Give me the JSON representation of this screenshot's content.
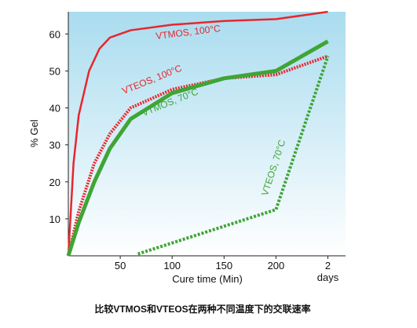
{
  "chart_data": {
    "type": "line",
    "caption": "比较VTMOS和VTEOS在两种不同温度下的交联速率",
    "ylabel": "% Gel",
    "xlabel": "Cure time (Min)",
    "xlim": [
      0,
      267
    ],
    "ylim": [
      0,
      66
    ],
    "xticks": [
      50,
      100,
      150,
      200,
      {
        "value": 250,
        "label": "2 days"
      }
    ],
    "yticks": [
      10,
      20,
      30,
      40,
      50,
      60
    ],
    "series": [
      {
        "name": "VTMOS, 100°C",
        "color": "#e8262c",
        "style": "solid",
        "x": [
          0,
          5,
          10,
          20,
          30,
          40,
          60,
          100,
          150,
          200,
          250
        ],
        "values": [
          0,
          25,
          38,
          50,
          56,
          59,
          61,
          62.5,
          63.5,
          64,
          66
        ]
      },
      {
        "name": "VTEOS, 100°C",
        "color": "#e8262c",
        "style": "dotted",
        "x": [
          0,
          10,
          25,
          40,
          60,
          100,
          150,
          200,
          250
        ],
        "values": [
          0,
          12,
          25,
          33,
          40,
          45,
          48,
          49,
          54
        ]
      },
      {
        "name": "VTMOS, 70°C",
        "color": "#3fa535",
        "style": "thick",
        "x": [
          0,
          10,
          25,
          40,
          60,
          100,
          150,
          200,
          250
        ],
        "values": [
          0,
          9,
          20,
          29,
          37,
          44,
          48,
          50,
          58
        ]
      },
      {
        "name": "VTEOS, 70°C",
        "color": "#3fa535",
        "style": "dashed",
        "x": [
          67,
          200,
          250
        ],
        "values": [
          0.5,
          12.5,
          54
        ]
      }
    ]
  }
}
